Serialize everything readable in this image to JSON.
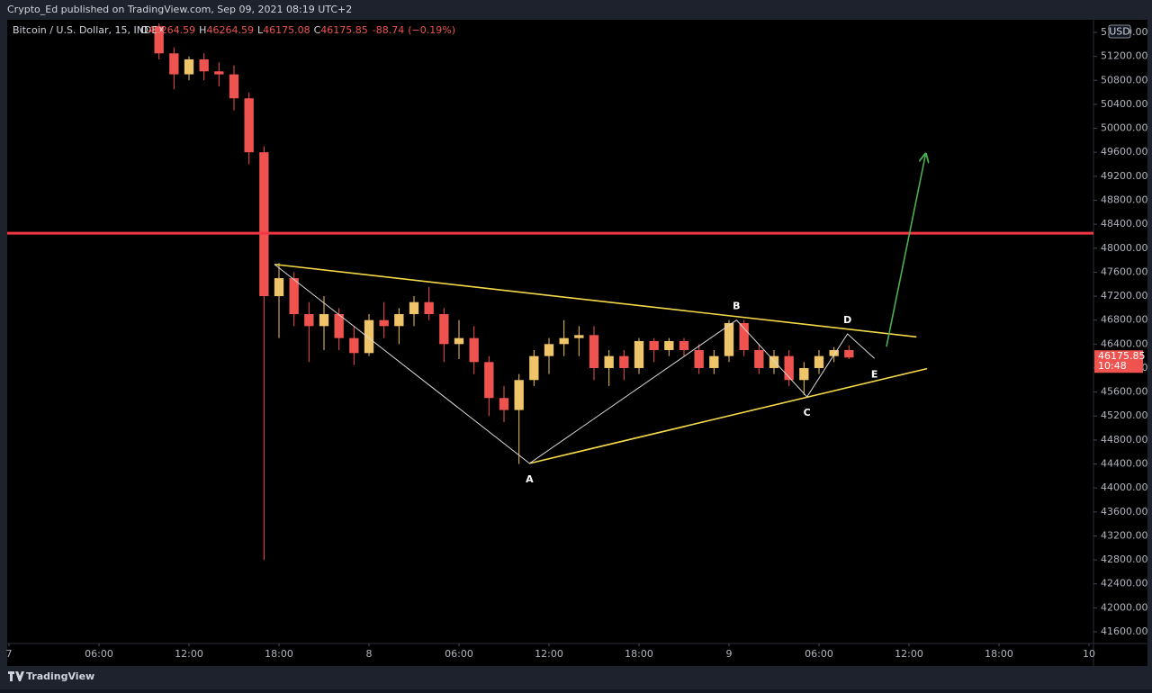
{
  "chart_data": {
    "type": "candlestick",
    "header": "Crypto_Ed published on TradingView.com, Sep 09, 2021 08:19 UTC+2",
    "symbol": "Bitcoin / U.S. Dollar, 15, INDEX",
    "ohlc_legend": [
      {
        "label": "O",
        "value": 46264.59
      },
      {
        "label": "H",
        "value": 46264.59
      },
      {
        "label": "L",
        "value": 46175.08
      },
      {
        "label": "C",
        "value": 46175.85
      }
    ],
    "change": -88.74,
    "change_pct": "(−0.19%)",
    "currency": "USD",
    "last_price": 46175.85,
    "countdown": "10:48",
    "brand": "TradingView",
    "up_color": "#f0c468",
    "down_color": "#ef5350",
    "x": [
      10,
      11,
      12,
      13,
      14,
      15,
      16,
      17,
      18,
      19,
      20,
      21,
      22,
      23,
      24,
      25,
      26,
      27,
      28,
      29,
      30,
      31,
      32,
      33,
      34,
      35,
      36,
      37,
      38,
      39,
      40,
      41,
      42,
      43,
      44,
      45,
      46,
      47,
      48,
      49,
      50,
      51,
      52,
      53,
      54,
      55,
      56
    ],
    "open": [
      51700,
      51250,
      50900,
      51150,
      50950,
      50900,
      50500,
      49600,
      47200,
      47500,
      46900,
      46700,
      46900,
      46500,
      46250,
      46800,
      46700,
      46900,
      47100,
      46900,
      46400,
      46500,
      46100,
      45500,
      45300,
      45800,
      46200,
      46400,
      46500,
      46550,
      46000,
      46200,
      46000,
      46450,
      46300,
      46450,
      46300,
      46000,
      46200,
      46750,
      46300,
      46000,
      46200,
      45800,
      46000,
      46200,
      46300
    ],
    "high": [
      51750,
      51350,
      51200,
      51250,
      51100,
      51050,
      50600,
      49700,
      47750,
      47600,
      47100,
      47200,
      47000,
      46700,
      46900,
      47100,
      47000,
      47200,
      47350,
      47000,
      46800,
      46700,
      46200,
      45700,
      45900,
      46300,
      46500,
      46800,
      46700,
      46700,
      46300,
      46300,
      46500,
      46500,
      46500,
      46500,
      46400,
      46300,
      46800,
      46800,
      46400,
      46300,
      46300,
      46100,
      46300,
      46350,
      46380
    ],
    "low": [
      51150,
      50650,
      50800,
      50800,
      50700,
      50300,
      49400,
      42800,
      46500,
      46700,
      46100,
      46300,
      46300,
      46050,
      46200,
      46500,
      46400,
      46700,
      46800,
      46100,
      46150,
      45900,
      45200,
      45100,
      44400,
      45700,
      45900,
      46200,
      46200,
      45800,
      45700,
      45800,
      45900,
      46100,
      46200,
      46200,
      45900,
      45900,
      46100,
      46200,
      45900,
      45900,
      45700,
      45550,
      45900,
      46100,
      46150
    ],
    "close": [
      51250,
      50900,
      51150,
      50950,
      50900,
      50500,
      49600,
      47200,
      47500,
      46900,
      46700,
      46900,
      46500,
      46250,
      46800,
      46700,
      46900,
      47100,
      46900,
      46400,
      46500,
      46100,
      45500,
      45300,
      45800,
      46200,
      46400,
      46500,
      46550,
      46000,
      46200,
      46000,
      46450,
      46300,
      46450,
      46300,
      46000,
      46200,
      46750,
      46300,
      46000,
      46200,
      45800,
      46000,
      46200,
      46300,
      46175.85
    ],
    "xlim": [
      -0.12,
      72.3
    ],
    "ylim": [
      41405,
      51810
    ],
    "xticks": [
      {
        "value": 0,
        "label": "7"
      },
      {
        "value": 6,
        "label": "06:00"
      },
      {
        "value": 12,
        "label": "12:00"
      },
      {
        "value": 18,
        "label": "18:00"
      },
      {
        "value": 24,
        "label": "8"
      },
      {
        "value": 30,
        "label": "06:00"
      },
      {
        "value": 36,
        "label": "12:00"
      },
      {
        "value": 42,
        "label": "18:00"
      },
      {
        "value": 48,
        "label": "9"
      },
      {
        "value": 54,
        "label": "06:00"
      },
      {
        "value": 60,
        "label": "12:00"
      },
      {
        "value": 66,
        "label": "18:00"
      },
      {
        "value": 72,
        "label": "10"
      }
    ],
    "yticks": [
      {
        "value": 41600,
        "label": "41600.00"
      },
      {
        "value": 42000,
        "label": "42000.00"
      },
      {
        "value": 42400,
        "label": "42400.00"
      },
      {
        "value": 42800,
        "label": "42800.00"
      },
      {
        "value": 43200,
        "label": "43200.00"
      },
      {
        "value": 43600,
        "label": "43600.00"
      },
      {
        "value": 44000,
        "label": "44000.00"
      },
      {
        "value": 44400,
        "label": "44400.00"
      },
      {
        "value": 44800,
        "label": "44800.00"
      },
      {
        "value": 45200,
        "label": "45200.00"
      },
      {
        "value": 45600,
        "label": "45600.00"
      },
      {
        "value": 46000,
        "label": "46000.00"
      },
      {
        "value": 46400,
        "label": "46400.00"
      },
      {
        "value": 46800,
        "label": "46800.00"
      },
      {
        "value": 47200,
        "label": "47200.00"
      },
      {
        "value": 47600,
        "label": "47600.00"
      },
      {
        "value": 48000,
        "label": "48000.00"
      },
      {
        "value": 48400,
        "label": "48400.00"
      },
      {
        "value": 48800,
        "label": "48800.00"
      },
      {
        "value": 49200,
        "label": "49200.00"
      },
      {
        "value": 49600,
        "label": "49600.00"
      },
      {
        "value": 50000,
        "label": "50000.00"
      },
      {
        "value": 50400,
        "label": "50400.00"
      },
      {
        "value": 50800,
        "label": "50800.00"
      },
      {
        "value": 51200,
        "label": "51200.00"
      },
      {
        "value": 51600,
        "label": "51600.00"
      }
    ],
    "grid": false,
    "drawings": [
      {
        "name": "resistance",
        "color": "#f23645",
        "width": 3,
        "x": [
          -0.12,
          72.3
        ],
        "y": [
          48250,
          48250
        ]
      },
      {
        "name": "upper-trendline",
        "color": "#f5d94a",
        "width": 1.6,
        "x": [
          17.7,
          60.5
        ],
        "y": [
          47730,
          46520
        ]
      },
      {
        "name": "lower-trendline",
        "color": "#f5d94a",
        "width": 1.6,
        "x": [
          34.7,
          61.2
        ],
        "y": [
          44410,
          45990
        ]
      },
      {
        "name": "wave-path",
        "color": "#d8d8d8",
        "width": 1,
        "x": [
          17.7,
          34.7,
          48.5,
          53.2,
          55.9,
          57.7
        ],
        "y": [
          47730,
          44410,
          46800,
          45520,
          46570,
          46160
        ]
      },
      {
        "name": "breakout-arrow",
        "color": "#4caf50",
        "width": 1.6,
        "arrow": true,
        "x": [
          58.5,
          61.1
        ],
        "y": [
          46360,
          49560
        ]
      }
    ],
    "wave_labels": [
      {
        "text": "A",
        "x": 34.7,
        "y": 44410,
        "position": "below"
      },
      {
        "text": "B",
        "x": 48.5,
        "y": 46800,
        "position": "above"
      },
      {
        "text": "C",
        "x": 53.2,
        "y": 45520,
        "position": "below"
      },
      {
        "text": "D",
        "x": 55.9,
        "y": 46570,
        "position": "above"
      },
      {
        "text": "E",
        "x": 57.7,
        "y": 46160,
        "position": "below"
      }
    ]
  }
}
